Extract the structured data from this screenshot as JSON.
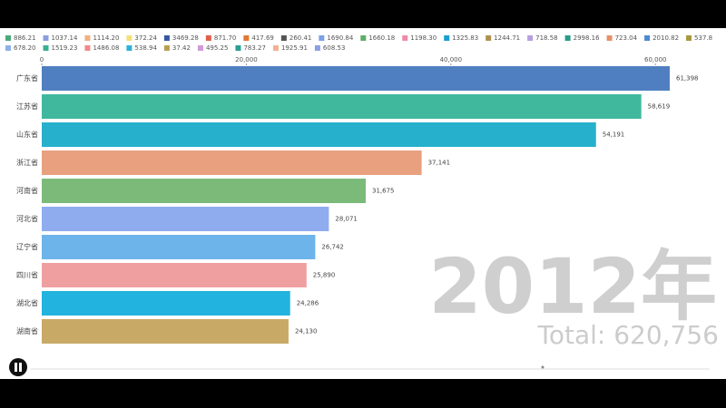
{
  "chart_data": {
    "type": "bar",
    "orientation": "horizontal",
    "legend": [
      [
        {
          "label": "886.21",
          "color": "#4caa7a"
        },
        {
          "label": "1037.14",
          "color": "#8a9fe0"
        },
        {
          "label": "1114.20",
          "color": "#f0b080"
        },
        {
          "label": "372.24",
          "color": "#f4e07a"
        },
        {
          "label": "3469.28",
          "color": "#3558a0"
        },
        {
          "label": "871.70",
          "color": "#e0604a"
        },
        {
          "label": "417.69",
          "color": "#e07a30"
        },
        {
          "label": "260.41",
          "color": "#555555"
        },
        {
          "label": "1690.84",
          "color": "#7da0e6"
        },
        {
          "label": "1660.18",
          "color": "#5fae6a"
        },
        {
          "label": "1198.30",
          "color": "#f08aa8"
        },
        {
          "label": "1325.83",
          "color": "#1a9fd0"
        },
        {
          "label": "1244.71",
          "color": "#b09050"
        },
        {
          "label": "718.58",
          "color": "#b79fe0"
        },
        {
          "label": "2998.16",
          "color": "#2a9a88"
        },
        {
          "label": "723.04",
          "color": "#e8906a"
        },
        {
          "label": "2010.82",
          "color": "#4a8ad0"
        },
        {
          "label": "537.8",
          "color": "#a89840"
        }
      ],
      [
        {
          "label": "678.20",
          "color": "#8fb0e8"
        },
        {
          "label": "1519.23",
          "color": "#3ab090"
        },
        {
          "label": "1486.08",
          "color": "#f08a8a"
        },
        {
          "label": "538.94",
          "color": "#30b0d8"
        },
        {
          "label": "37.42",
          "color": "#b8a050"
        },
        {
          "label": "495.25",
          "color": "#d09ad8"
        },
        {
          "label": "783.27",
          "color": "#2aa090"
        },
        {
          "label": "1925.91",
          "color": "#f4b090"
        },
        {
          "label": "608.53",
          "color": "#8aa0e0"
        }
      ]
    ],
    "categories": [
      "广东省",
      "江苏省",
      "山东省",
      "浙江省",
      "河南省",
      "河北省",
      "辽宁省",
      "四川省",
      "湖北省",
      "湖南省"
    ],
    "values": [
      61398,
      58619,
      54191,
      37141,
      31675,
      28071,
      26742,
      25890,
      24286,
      24130
    ],
    "value_labels": [
      "61,398",
      "58,619",
      "54,191",
      "37,141",
      "31,675",
      "28,071",
      "26,742",
      "25,890",
      "24,286",
      "24,130"
    ],
    "colors": [
      "#4f7fc0",
      "#3fb89e",
      "#26b0cc",
      "#e8a07f",
      "#7cba7a",
      "#8facef",
      "#6cb4ea",
      "#ef9fa0",
      "#22b3de",
      "#c8aa66"
    ],
    "xlim": [
      0,
      61398
    ],
    "xticks": [
      0,
      {
        "value": 20000,
        "label": "20,000"
      },
      {
        "value": 40000,
        "label": "40,000"
      },
      {
        "value": 60000,
        "label": "60,000"
      }
    ],
    "period_label": "2012年",
    "total_label": "Total: 620,756"
  }
}
